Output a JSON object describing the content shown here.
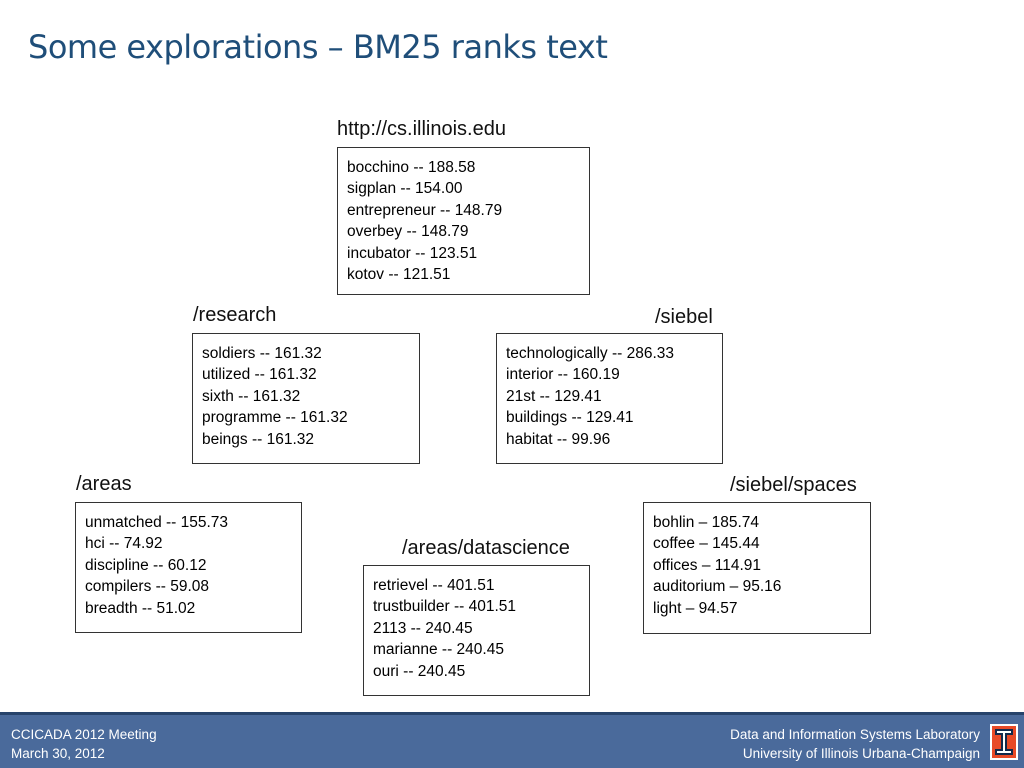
{
  "slide": {
    "title": "Some explorations – BM25 ranks text"
  },
  "nodes": {
    "root": {
      "label": "http://cs.illinois.edu",
      "entries": [
        "bocchino -- 188.58",
        "sigplan -- 154.00",
        "entrepreneur -- 148.79",
        "overbey -- 148.79",
        "incubator -- 123.51",
        "kotov -- 121.51"
      ]
    },
    "research": {
      "label": "/research",
      "entries": [
        "soldiers -- 161.32",
        "utilized -- 161.32",
        "sixth -- 161.32",
        "programme -- 161.32",
        "beings -- 161.32"
      ]
    },
    "siebel": {
      "label": "/siebel",
      "entries": [
        "technologically -- 286.33",
        "interior -- 160.19",
        "21st -- 129.41",
        "buildings -- 129.41",
        "habitat -- 99.96"
      ]
    },
    "areas": {
      "label": "/areas",
      "entries": [
        "unmatched -- 155.73",
        "hci -- 74.92",
        "discipline -- 60.12",
        "compilers -- 59.08",
        "breadth -- 51.02"
      ]
    },
    "datascience": {
      "label": "/areas/datascience",
      "entries": [
        "retrievel -- 401.51",
        "trustbuilder -- 401.51",
        "2113 -- 240.45",
        "marianne -- 240.45",
        "ouri -- 240.45"
      ]
    },
    "spaces": {
      "label": "/siebel/spaces",
      "entries": [
        "bohlin – 185.74",
        "coffee – 145.44",
        "offices – 114.91",
        "auditorium – 95.16",
        "light – 94.57"
      ]
    }
  },
  "footer": {
    "event": "CCICADA 2012 Meeting",
    "date": "March 30, 2012",
    "lab": "Data and Information Systems Laboratory",
    "university": "University of Illinois Urbana-Champaign",
    "logo_icon": "illinois-block-i-logo"
  },
  "colors": {
    "title": "#1f4e79",
    "footer_bg": "#4a6a9b",
    "footer_border": "#27436b",
    "logo_orange": "#e84a27",
    "logo_navy": "#13294b"
  }
}
